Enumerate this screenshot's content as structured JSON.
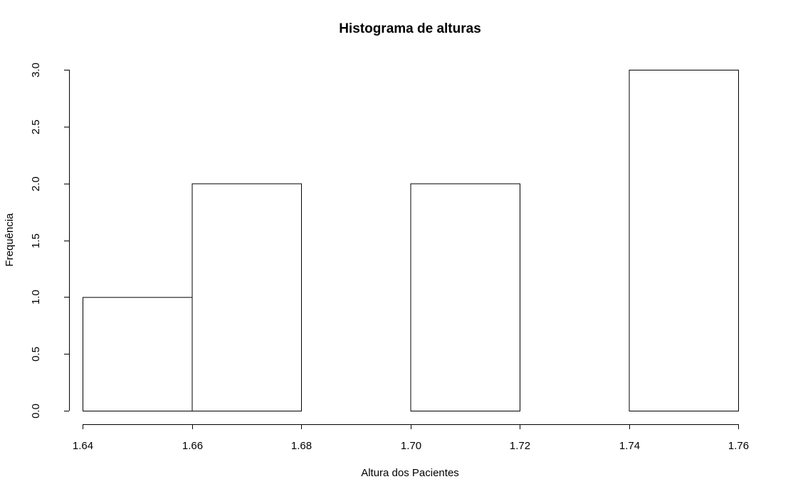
{
  "chart_data": {
    "type": "bar",
    "title": "Histograma de alturas",
    "xlabel": "Altura dos Pacientes",
    "ylabel": "Frequência",
    "bins": [
      {
        "start": 1.64,
        "end": 1.66,
        "count": 1
      },
      {
        "start": 1.66,
        "end": 1.68,
        "count": 2
      },
      {
        "start": 1.68,
        "end": 1.7,
        "count": 0
      },
      {
        "start": 1.7,
        "end": 1.72,
        "count": 2
      },
      {
        "start": 1.72,
        "end": 1.74,
        "count": 0
      },
      {
        "start": 1.74,
        "end": 1.76,
        "count": 3
      }
    ],
    "xlim": [
      1.64,
      1.76
    ],
    "ylim": [
      0,
      3
    ],
    "x_ticks": [
      1.64,
      1.66,
      1.68,
      1.7,
      1.72,
      1.74,
      1.76
    ],
    "x_tick_labels": [
      "1.64",
      "1.66",
      "1.68",
      "1.70",
      "1.72",
      "1.74",
      "1.76"
    ],
    "y_ticks": [
      0,
      0.5,
      1.0,
      1.5,
      2.0,
      2.5,
      3.0
    ],
    "y_tick_labels": [
      "0.0",
      "0.5",
      "1.0",
      "1.5",
      "2.0",
      "2.5",
      "3.0"
    ],
    "grid": false,
    "bar_fill": "#ffffff",
    "bar_stroke": "#000000"
  }
}
